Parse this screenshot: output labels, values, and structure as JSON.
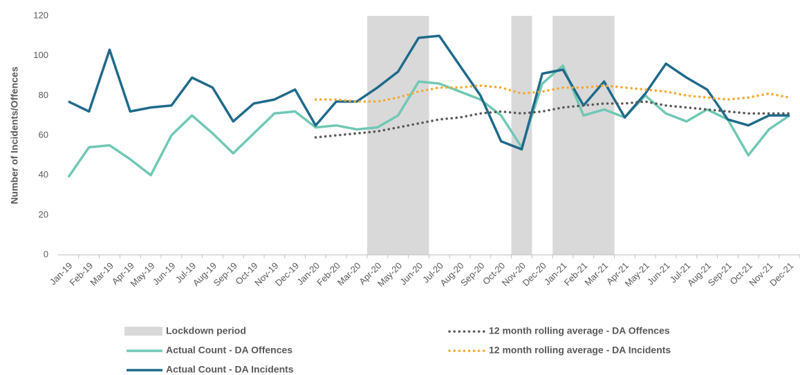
{
  "chart_data": {
    "type": "line",
    "y_label": "Number of Incidents/Offences",
    "categories": [
      "Jan-19",
      "Feb-19",
      "Mar-19",
      "Apr-19",
      "May-19",
      "Jun-19",
      "Jul-19",
      "Aug-19",
      "Sep-19",
      "Oct-19",
      "Nov-19",
      "Dec-19",
      "Jan-20",
      "Feb-20",
      "Mar-20",
      "Apr-20",
      "May-20",
      "Jun-20",
      "Jul-20",
      "Aug-20",
      "Sep-20",
      "Oct-20",
      "Nov-20",
      "Dec-20",
      "Jan-21",
      "Feb-21",
      "Mar-21",
      "Apr-21",
      "May-21",
      "Jun-21",
      "Jul-21",
      "Aug-21",
      "Sep-21",
      "Oct-21",
      "Nov-21",
      "Dec-21"
    ],
    "ylim": [
      0,
      120
    ],
    "yticks": [
      0,
      20,
      40,
      60,
      80,
      100,
      120
    ],
    "lockdown": {
      "name": "Lockdown period",
      "color": "#d9d9d9",
      "periods": [
        {
          "start": "Apr-20",
          "end": "Jun-20"
        },
        {
          "start": "Nov-20",
          "end": "Nov-20"
        },
        {
          "start": "Jan-21",
          "end": "Mar-21"
        }
      ]
    },
    "series": [
      {
        "name": "Actual Count - DA Offences",
        "color": "#70c8b4",
        "style": "solid",
        "values": [
          39,
          54,
          55,
          48,
          40,
          60,
          70,
          61,
          51,
          61,
          71,
          72,
          64,
          65,
          63,
          64,
          70,
          87,
          86,
          82,
          78,
          70,
          54,
          86,
          95,
          70,
          73,
          69,
          80,
          71,
          67,
          73,
          68,
          50,
          63,
          70
        ]
      },
      {
        "name": "Actual Count - DA Incidents",
        "color": "#1f6a8a",
        "style": "solid",
        "values": [
          77,
          72,
          103,
          72,
          74,
          75,
          89,
          84,
          67,
          76,
          78,
          83,
          65,
          77,
          77,
          84,
          92,
          109,
          110,
          95,
          80,
          57,
          53,
          91,
          93,
          75,
          87,
          69,
          81,
          96,
          89,
          83,
          68,
          65,
          70,
          70
        ]
      },
      {
        "name": "12 month rolling average - DA Offences",
        "color": "#595959",
        "style": "dotted",
        "values": [
          null,
          null,
          null,
          null,
          null,
          null,
          null,
          null,
          null,
          null,
          null,
          null,
          59,
          60,
          61,
          62,
          64,
          66,
          68,
          69,
          71,
          72,
          71,
          72,
          74,
          75,
          76,
          76,
          77,
          75,
          74,
          73,
          72,
          71,
          71,
          71
        ]
      },
      {
        "name": "12 month rolling average - DA Incidents",
        "color": "#f5a833",
        "style": "dotted",
        "values": [
          null,
          null,
          null,
          null,
          null,
          null,
          null,
          null,
          null,
          null,
          null,
          null,
          78,
          78,
          77,
          77,
          79,
          82,
          84,
          84,
          85,
          84,
          81,
          82,
          84,
          84,
          85,
          84,
          83,
          82,
          80,
          79,
          78,
          79,
          81,
          79
        ]
      }
    ]
  }
}
